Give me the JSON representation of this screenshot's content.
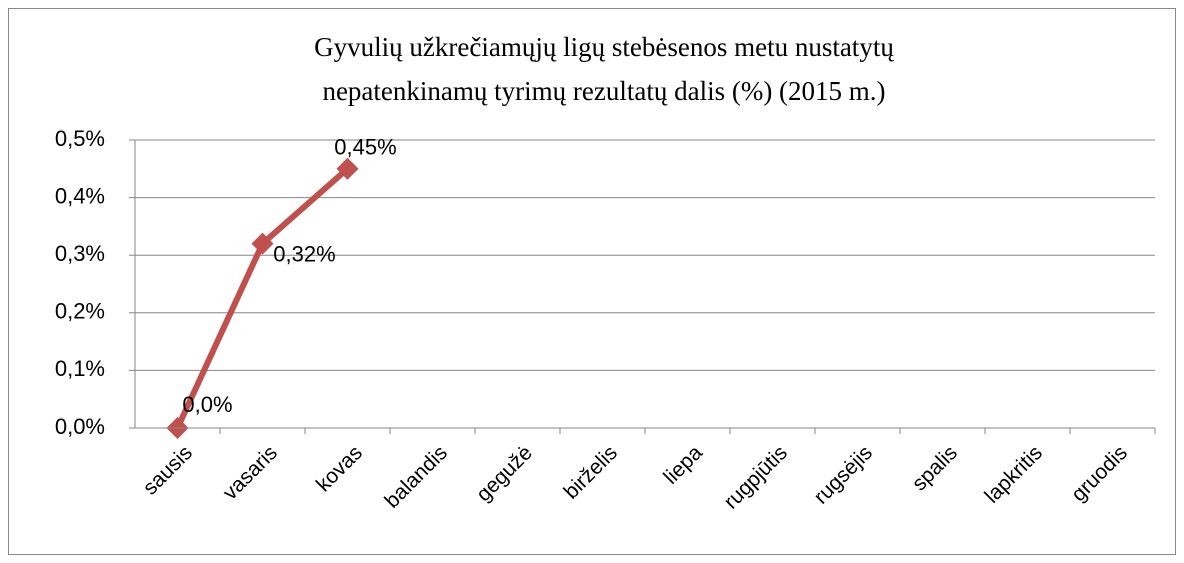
{
  "chart_data": {
    "type": "line",
    "title": [
      "Gyvulių užkrečiamųjų  ligų stebėsenos metu nustatytų",
      "nepatenkinamų tyrimų rezultatų dalis (%) (2015 m.)"
    ],
    "categories": [
      "sausis",
      "vasaris",
      "kovas",
      "balandis",
      "gegužė",
      "birželis",
      "liepa",
      "rugpjūtis",
      "rugsėjis",
      "spalis",
      "lapkritis",
      "gruodis"
    ],
    "series": [
      {
        "name": null,
        "color": "#c0504d",
        "values": [
          0,
          0.32,
          0.45,
          null,
          null,
          null,
          null,
          null,
          null,
          null,
          null,
          null
        ],
        "value_labels": [
          "0,0%",
          "0,32%",
          "0,45%",
          null,
          null,
          null,
          null,
          null,
          null,
          null,
          null,
          null
        ]
      }
    ],
    "ylim": [
      0,
      0.5
    ],
    "yticks": [
      {
        "value": 0,
        "label": "0,0%"
      },
      {
        "value": 0.1,
        "label": "0,1%"
      },
      {
        "value": 0.2,
        "label": "0,2%"
      },
      {
        "value": 0.3,
        "label": "0,3%"
      },
      {
        "value": 0.4,
        "label": "0,4%"
      },
      {
        "value": 0.5,
        "label": "0,5%"
      }
    ],
    "grid": true
  }
}
